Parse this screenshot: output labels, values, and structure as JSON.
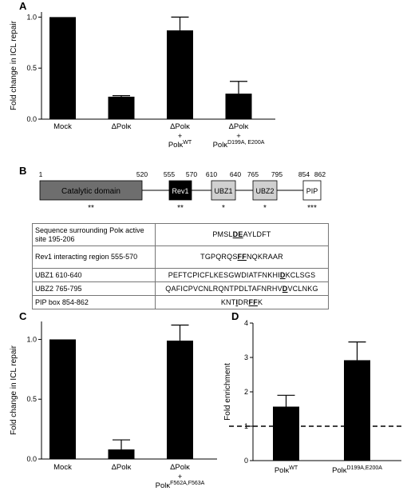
{
  "panel_labels": {
    "a": "A",
    "b": "B",
    "c": "C",
    "d": "D"
  },
  "chart_data": [
    {
      "id": "A",
      "type": "bar",
      "ylabel": "Fold change in ICL repair",
      "ylim": [
        0,
        1.0
      ],
      "yticks": [
        "0.0",
        "0.5",
        "1.0"
      ],
      "categories": [
        {
          "main": "Mock",
          "lines": []
        },
        {
          "main": "ΔPolκ",
          "lines": []
        },
        {
          "main": "ΔPolκ",
          "lines": [
            {
              "text": "+",
              "sup": ""
            },
            {
              "text": "Polκ",
              "sup": "WT"
            }
          ]
        },
        {
          "main": "ΔPolκ",
          "lines": [
            {
              "text": "+",
              "sup": ""
            },
            {
              "text": "Polκ",
              "sup": "D199A, E200A"
            }
          ]
        }
      ],
      "values": [
        1.0,
        0.22,
        0.87,
        0.25
      ],
      "errors": [
        0.0,
        0.01,
        0.13,
        0.12
      ]
    },
    {
      "id": "C",
      "type": "bar",
      "ylabel": "Fold change in ICL repair",
      "ylim": [
        0,
        1.2
      ],
      "yticks": [
        "0.0",
        "0.5",
        "1.0"
      ],
      "categories": [
        {
          "main": "Mock",
          "lines": []
        },
        {
          "main": "ΔPolκ",
          "lines": []
        },
        {
          "main": "ΔPolκ",
          "lines": [
            {
              "text": "+",
              "sup": ""
            },
            {
              "text": "Polκ",
              "sup": "F562A,F563A"
            }
          ]
        }
      ],
      "values": [
        1.0,
        0.08,
        0.99
      ],
      "errors": [
        0.0,
        0.08,
        0.13
      ]
    },
    {
      "id": "D",
      "type": "bar",
      "ylabel": "Fold enrichment",
      "ylim": [
        0,
        4
      ],
      "yticks": [
        "0",
        "1",
        "2",
        "3",
        "4"
      ],
      "reference_line": 1,
      "categories": [
        {
          "main": "Polκ",
          "sup": "WT",
          "lines": []
        },
        {
          "main": "Polκ",
          "sup": "D199A,E200A",
          "lines": []
        }
      ],
      "values": [
        1.57,
        2.92
      ],
      "errors": [
        0.33,
        0.53
      ]
    }
  ],
  "domain_map": {
    "domains": [
      {
        "label": "Catalytic domain",
        "start": "1",
        "end": "520",
        "color": "#6e6e6e",
        "text_color": "#000000",
        "stars": "**"
      },
      {
        "label": "Rev1",
        "start": "555",
        "end": "570",
        "color": "#000000",
        "text_color": "#ffffff",
        "stars": "**"
      },
      {
        "label": "UBZ1",
        "start": "610",
        "end": "640",
        "color": "#d0d0d0",
        "text_color": "#000000",
        "stars": "*"
      },
      {
        "label": "UBZ2",
        "start": "765",
        "end": "795",
        "color": "#d0d0d0",
        "text_color": "#000000",
        "stars": "*"
      },
      {
        "label": "PIP",
        "start": "854",
        "end": "862",
        "color": "#ffffff",
        "text_color": "#000000",
        "stars": "***"
      }
    ]
  },
  "sequence_table": [
    {
      "label": "Sequence surrounding Polκ active site 195-206",
      "pre": "PMSL",
      "mark": "DE",
      "post": "AYLDFT"
    },
    {
      "label": "Rev1 interacting region 555-570",
      "pre": "TGPQRQS",
      "mark": "FF",
      "post": "NQKRAAR"
    },
    {
      "label": "UBZ1 610-640",
      "pre": "PEFTCPICFLKESGWDIATFNKHI",
      "mark": "D",
      "post": "KCLSGS"
    },
    {
      "label": "UBZ2 765-795",
      "pre": "QAFICPVCNLRQNTPDLTAFNRHV",
      "mark": "D",
      "post": "VCLNKG"
    },
    {
      "label": "PIP box 854-862",
      "pre": "KNT",
      "mark": "I",
      "mid": "DR",
      "mark2": "FF",
      "post": "K"
    }
  ]
}
